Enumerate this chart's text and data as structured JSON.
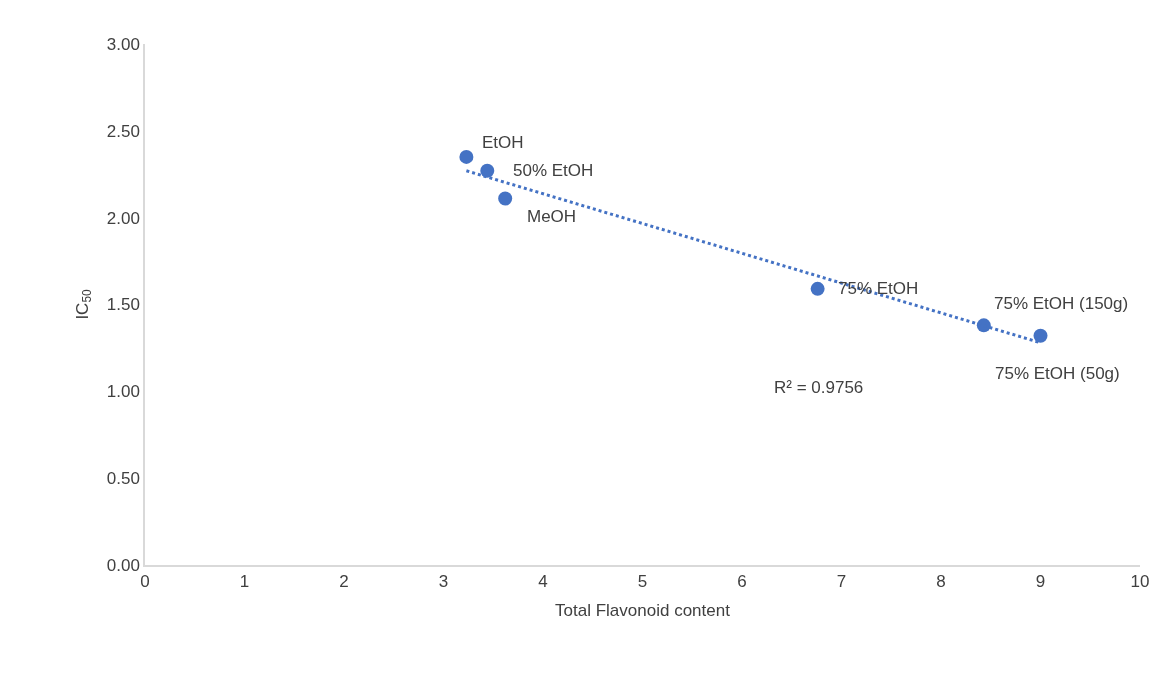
{
  "chart_data": {
    "type": "scatter",
    "xlabel": "Total Flavonoid content",
    "ylabel": "IC$_{50}$",
    "xlim": [
      0,
      10
    ],
    "xticks": [
      0,
      1,
      2,
      3,
      4,
      5,
      6,
      7,
      8,
      9,
      10
    ],
    "ylim": [
      0,
      3
    ],
    "yticks": [
      {
        "value": 0,
        "label": "0.00"
      },
      {
        "value": 0.5,
        "label": "0.50"
      },
      {
        "value": 1,
        "label": "1.00"
      },
      {
        "value": 1.5,
        "label": "1.50"
      },
      {
        "value": 2,
        "label": "2.00"
      },
      {
        "value": 2.5,
        "label": "2.50"
      },
      {
        "value": 3,
        "label": "3.00"
      }
    ],
    "grid": false,
    "marker": "circle",
    "series": [
      {
        "color": "#4472c4",
        "x": [
          3.23,
          3.44,
          3.62,
          6.76,
          8.43,
          9.0
        ],
        "values": [
          2.35,
          2.27,
          2.11,
          1.59,
          1.38,
          1.32
        ]
      },
      {
        "type": "line",
        "color": "#4472c4",
        "line_style": "dotted",
        "marker": "none",
        "x": [
          3.23,
          9.0
        ],
        "values": [
          2.27,
          1.28
        ]
      }
    ],
    "annotations": [
      {
        "text": "EtOH",
        "x": 3.23,
        "y": 2.35
      },
      {
        "text": "50% EtOH",
        "x": 3.44,
        "y": 2.27
      },
      {
        "text": "MeOH",
        "x": 3.62,
        "y": 2.11
      },
      {
        "text": "75% EtOH",
        "x": 6.76,
        "y": 1.59
      },
      {
        "text": "75% EtOH (150g)",
        "x": 8.43,
        "y": 1.38
      },
      {
        "text": "75% EtOH (50g)",
        "x": 9.0,
        "y": 1.32
      },
      "R² = 0.9756"
    ]
  }
}
